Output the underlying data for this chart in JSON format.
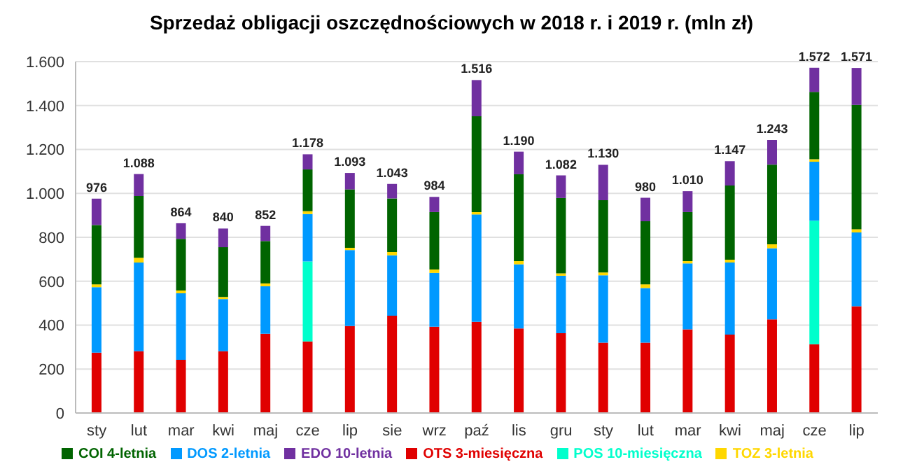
{
  "chart_data": {
    "type": "bar",
    "title": "Sprzedaż obligacji oszczędnościowych w 2018 r. i 2019 r. (mln zł)",
    "stacked": true,
    "legend": "bottom",
    "grid": "y",
    "categories": [
      "sty",
      "lut",
      "mar",
      "kwi",
      "maj",
      "cze",
      "lip",
      "sie",
      "wrz",
      "paź",
      "lis",
      "gru",
      "sty",
      "lut",
      "mar",
      "kwi",
      "maj",
      "cze",
      "lip"
    ],
    "series": [
      {
        "name": "OTS 3-miesięczna",
        "color": "#e00000",
        "values": [
          275,
          281,
          242,
          281,
          361,
          326,
          396,
          443,
          393,
          415,
          385,
          363,
          320,
          320,
          381,
          357,
          426,
          313,
          486
        ]
      },
      {
        "name": "POS 10-miesięczna",
        "color": "#00ffcc",
        "values": [
          0,
          0,
          0,
          0,
          0,
          364,
          0,
          0,
          0,
          0,
          0,
          0,
          0,
          0,
          0,
          0,
          0,
          563,
          0
        ]
      },
      {
        "name": "DOS 2-letnia",
        "color": "#0099ff",
        "values": [
          298,
          404,
          303,
          238,
          216,
          216,
          346,
          275,
          245,
          489,
          292,
          262,
          307,
          249,
          300,
          328,
          324,
          268,
          336
        ]
      },
      {
        "name": "TOZ 3-letnia",
        "color": "#ffd700",
        "values": [
          13,
          22,
          13,
          9,
          13,
          13,
          10,
          15,
          15,
          11,
          15,
          11,
          13,
          17,
          11,
          13,
          18,
          11,
          15
        ]
      },
      {
        "name": "COI 4-letnia",
        "color": "#006400",
        "values": [
          270,
          281,
          235,
          227,
          193,
          190,
          266,
          244,
          262,
          436,
          395,
          343,
          329,
          287,
          223,
          338,
          363,
          307,
          566
        ]
      },
      {
        "name": "EDO 10-letnia",
        "color": "#7030a0",
        "values": [
          120,
          100,
          71,
          85,
          69,
          69,
          75,
          66,
          69,
          165,
          103,
          103,
          161,
          107,
          95,
          111,
          112,
          110,
          168
        ]
      }
    ],
    "totals": [
      "976",
      "1.088",
      "864",
      "840",
      "852",
      "1.178",
      "1.093",
      "1.043",
      "984",
      "1.516",
      "1.190",
      "1.082",
      "1.130",
      "980",
      "1.010",
      "1.147",
      "1.243",
      "1.572",
      "1.571"
    ],
    "ylim": [
      0,
      1600
    ],
    "yticks": [
      0,
      200,
      400,
      600,
      800,
      {
        "value": 1000,
        "label": "1.000"
      },
      {
        "value": 1200,
        "label": "1.200"
      },
      {
        "value": 1400,
        "label": "1.400"
      },
      {
        "value": 1600,
        "label": "1.600"
      }
    ]
  }
}
